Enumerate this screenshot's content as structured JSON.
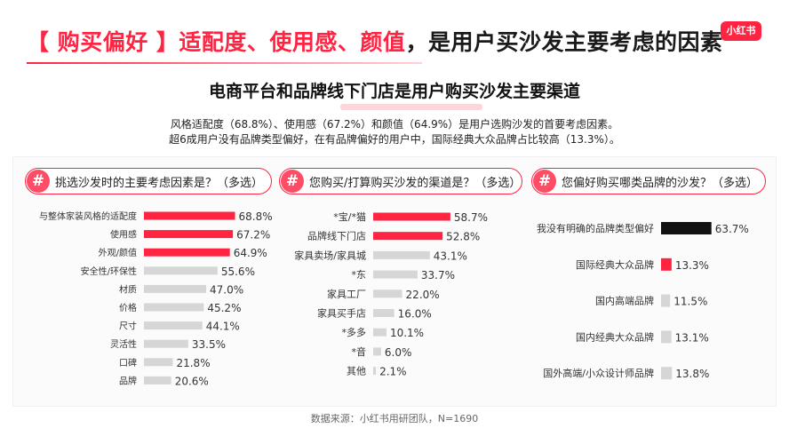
{
  "header": {
    "prefix": "【 购买偏好 】",
    "accent": "适配度、使用感、颜值",
    "rest": "，是用户买沙发主要考虑的因素",
    "logo": "小红书"
  },
  "subtitle": "电商平台和品牌线下门店是用户购买沙发主要渠道",
  "summary_lines": [
    "风格适配度（68.8%）、使用感（67.2%）和颜值（64.9%）是用户选购沙发的首要考虑因素。",
    "超6成用户没有品牌类型偏好，在有品牌偏好的用户中，国际经典大众品牌占比较高（13.3%）。"
  ],
  "footer": "数据来源：小红书用研团队，N=1690",
  "colors": {
    "red": "#ff2442",
    "gray": "#d6d6d6",
    "black": "#111111"
  },
  "icons": {
    "question_marker": "hash-icon"
  },
  "chart_data": [
    {
      "type": "bar",
      "title": "挑选沙发时的主要考虑因素是？（多选）",
      "orientation": "horizontal",
      "xlim": [
        0,
        100
      ],
      "categories": [
        "与整体家装风格的适配度",
        "使用感",
        "外观/颜值",
        "安全性/环保性",
        "材质",
        "价格",
        "尺寸",
        "灵活性",
        "口碑",
        "品牌"
      ],
      "values": [
        68.8,
        67.2,
        64.9,
        55.6,
        47.0,
        45.2,
        44.1,
        33.5,
        21.8,
        20.6
      ],
      "labels": [
        "68.8%",
        "67.2%",
        "64.9%",
        "55.6%",
        "47.0%",
        "45.2%",
        "44.1%",
        "33.5%",
        "21.8%",
        "20.6%"
      ],
      "highlight_count": 3
    },
    {
      "type": "bar",
      "title": "您购买/打算购买沙发的渠道是？（多选）",
      "orientation": "horizontal",
      "xlim": [
        0,
        100
      ],
      "categories": [
        "*宝/*猫",
        "品牌线下门店",
        "家具卖场/家具城",
        "*东",
        "家具工厂",
        "家具买手店",
        "*多多",
        "*音",
        "其他"
      ],
      "values": [
        58.7,
        52.8,
        43.1,
        33.7,
        22.0,
        16.0,
        10.1,
        6.0,
        2.1
      ],
      "labels": [
        "58.7%",
        "52.8%",
        "43.1%",
        "33.7%",
        "22.0%",
        "16.0%",
        "10.1%",
        "6.0%",
        "2.1%"
      ],
      "highlight_count": 2
    },
    {
      "type": "bar",
      "title": "您偏好购买哪类品牌的沙发？（多选）",
      "orientation": "horizontal",
      "xlim": [
        0,
        100
      ],
      "categories": [
        "我没有明确的品牌类型偏好",
        "国际经典大众品牌",
        "国内高端品牌",
        "国内经典大众品牌",
        "国外高端/小众设计师品牌"
      ],
      "values": [
        63.7,
        13.3,
        11.5,
        13.1,
        13.8
      ],
      "labels": [
        "63.7%",
        "13.3%",
        "11.5%",
        "13.1%",
        "13.8%"
      ],
      "highlight_colors": [
        "black",
        "red",
        "gray",
        "gray",
        "gray"
      ]
    }
  ]
}
